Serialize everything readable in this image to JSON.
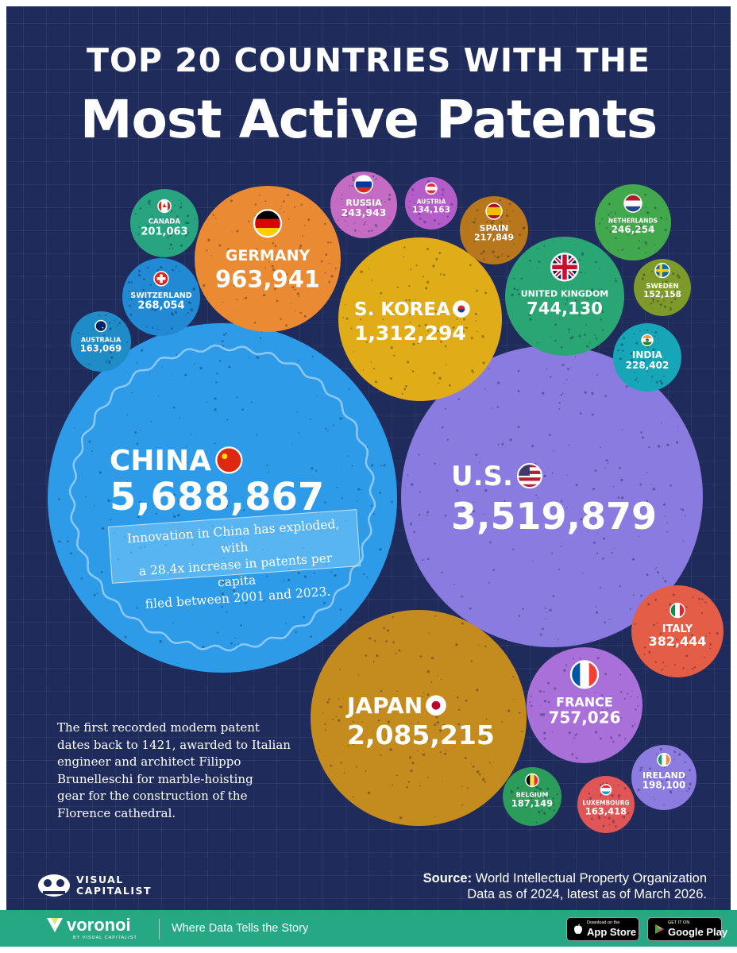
{
  "title": {
    "line1": "TOP 20 COUNTRIES WITH THE",
    "line2": "Most Active Patents"
  },
  "chart_data": {
    "type": "bubble",
    "title": "TOP 20 COUNTRIES WITH THE Most Active Patents",
    "metric": "Active patents",
    "bubbles": [
      {
        "name": "CHINA",
        "label": "5,688,867",
        "value": 5688867,
        "color": "#2e9be8",
        "flag": "china"
      },
      {
        "name": "U.S.",
        "label": "3,519,879",
        "value": 3519879,
        "color": "#8a7be0",
        "flag": "usa"
      },
      {
        "name": "JAPAN",
        "label": "2,085,215",
        "value": 2085215,
        "color": "#c48b1f",
        "flag": "japan"
      },
      {
        "name": "S. KOREA",
        "label": "1,312,294",
        "value": 1312294,
        "color": "#e0ad18",
        "flag": "korea"
      },
      {
        "name": "GERMANY",
        "label": "963,941",
        "value": 963941,
        "color": "#ea8a33",
        "flag": "germany"
      },
      {
        "name": "FRANCE",
        "label": "757,026",
        "value": 757026,
        "color": "#a970da",
        "flag": "france"
      },
      {
        "name": "UNITED KINGDOM",
        "label": "744,130",
        "value": 744130,
        "color": "#2aa675",
        "flag": "uk"
      },
      {
        "name": "ITALY",
        "label": "382,444",
        "value": 382444,
        "color": "#e45d46",
        "flag": "italy"
      },
      {
        "name": "SWITZERLAND",
        "label": "268,054",
        "value": 268054,
        "color": "#2289d4",
        "flag": "switzerland"
      },
      {
        "name": "NETHERLANDS",
        "label": "246,254",
        "value": 246254,
        "color": "#42a84e",
        "flag": "netherlands"
      },
      {
        "name": "RUSSIA",
        "label": "243,943",
        "value": 243943,
        "color": "#c46cc3",
        "flag": "russia"
      },
      {
        "name": "INDIA",
        "label": "228,402",
        "value": 228402,
        "color": "#17a5b8",
        "flag": "india"
      },
      {
        "name": "SPAIN",
        "label": "217,849",
        "value": 217849,
        "color": "#b8771c",
        "flag": "spain"
      },
      {
        "name": "CANADA",
        "label": "201,063",
        "value": 201063,
        "color": "#29a481",
        "flag": "canada"
      },
      {
        "name": "IRELAND",
        "label": "198,100",
        "value": 198100,
        "color": "#8c7ce0",
        "flag": "ireland"
      },
      {
        "name": "BELGIUM",
        "label": "187,149",
        "value": 187149,
        "color": "#2c9c5a",
        "flag": "belgium"
      },
      {
        "name": "LUXEMBOURG",
        "label": "163,418",
        "value": 163418,
        "color": "#e05656",
        "flag": "luxembourg"
      },
      {
        "name": "AUSTRALIA",
        "label": "163,069",
        "value": 163069,
        "color": "#1f8cc8",
        "flag": "australia"
      },
      {
        "name": "SWEDEN",
        "label": "152,158",
        "value": 152158,
        "color": "#7d9a2a",
        "flag": "sweden"
      },
      {
        "name": "AUSTRIA",
        "label": "134,163",
        "value": 134163,
        "color": "#b45dc9",
        "flag": "austria"
      }
    ],
    "annotations": [
      "Innovation in China has exploded, with a 28.4x increase in patents per capita filed between 2001 and 2023.",
      "The first recorded modern patent dates back to 1421, awarded to Italian engineer and architect Filippo Brunelleschi for marble-hoisting gear for the construction of the Florence cathedral."
    ]
  },
  "callout": {
    "line1": "Innovation in China has exploded, with",
    "line2": "a 28.4x increase in patents per capita",
    "line3": "filed between 2001 and 2023."
  },
  "fact": {
    "line1": "The first recorded modern patent",
    "line2": "dates back to 1421, awarded to Italian",
    "line3": "engineer and architect Filippo",
    "line4": "Brunelleschi for marble-hoisting",
    "line5": "gear for the construction of the",
    "line6": "Florence cathedral."
  },
  "brand": {
    "vc_line1": "VISUAL",
    "vc_line2": "CAPITALIST"
  },
  "source": {
    "label": "Source:",
    "text": " World Intellectual Property Organization",
    "line2": "Data as of 2024, latest as of March 2026."
  },
  "footer": {
    "name": "voronoi",
    "sub": "BY VISUAL CAPITALIST",
    "tagline": "Where Data Tells the Story",
    "appstore_small": "Download on the",
    "appstore_big": "App Store",
    "gplay_small": "GET IT ON",
    "gplay_big": "Google Play"
  }
}
